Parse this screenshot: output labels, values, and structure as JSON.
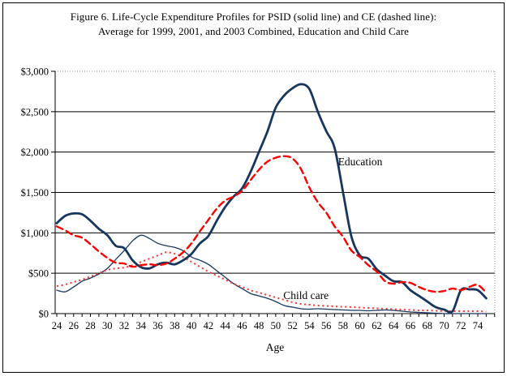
{
  "figure": {
    "title_line1": "Figure 6. Life-Cycle Expenditure Profiles for PSID (solid line) and CE (dashed line):",
    "title_line2": "Average for 1999, 2001, and 2003 Combined, Education and Child Care"
  },
  "chart_data": {
    "type": "line",
    "title": "Figure 6. Life-Cycle Expenditure Profiles for PSID (solid line) and CE (dashed line): Average for 1999, 2001, and 2003 Combined, Education and Child Care",
    "xlabel": "Age",
    "ylabel": "",
    "xlim": [
      24,
      76
    ],
    "ylim": [
      0,
      3000
    ],
    "grid": "horizontal-solid-black; top $3,000 line and right plot border dotted gray",
    "legend": "none (inline text annotations)",
    "colors": {
      "psid_navy": "#17365D",
      "ce_red": "#FF0000",
      "ce_red_light": "#FF3B3B",
      "grid_black": "#000000",
      "dotted_gray": "#888888"
    },
    "ages": [
      24,
      25,
      26,
      27,
      28,
      29,
      30,
      31,
      32,
      33,
      34,
      35,
      36,
      37,
      38,
      39,
      40,
      41,
      42,
      43,
      44,
      45,
      46,
      47,
      48,
      49,
      50,
      51,
      52,
      53,
      54,
      55,
      56,
      57,
      58,
      59,
      60,
      61,
      62,
      63,
      64,
      65,
      66,
      67,
      68,
      69,
      70,
      71,
      72,
      73,
      74,
      75
    ],
    "x_tick_labels": [
      "24",
      "26",
      "28",
      "30",
      "32",
      "34",
      "36",
      "38",
      "40",
      "42",
      "44",
      "46",
      "48",
      "50",
      "52",
      "54",
      "56",
      "58",
      "60",
      "62",
      "64",
      "66",
      "68",
      "70",
      "72",
      "74"
    ],
    "y_ticks": [
      {
        "value": 0,
        "label": "$0"
      },
      {
        "value": 500,
        "label": "$500"
      },
      {
        "value": 1000,
        "label": "$1,000"
      },
      {
        "value": 1500,
        "label": "$1,500"
      },
      {
        "value": 2000,
        "label": "$2,000"
      },
      {
        "value": 2500,
        "label": "$2,500"
      },
      {
        "value": 3000,
        "label": "$3,000"
      }
    ],
    "series": [
      {
        "name": "Child care - PSID (solid)",
        "style": "solid",
        "color": "#17365D",
        "width": 1.3,
        "values": [
          290,
          270,
          330,
          400,
          440,
          490,
          560,
          670,
          780,
          900,
          970,
          930,
          870,
          840,
          820,
          780,
          700,
          660,
          610,
          530,
          450,
          370,
          310,
          250,
          220,
          190,
          150,
          100,
          80,
          60,
          55,
          60,
          55,
          50,
          45,
          40,
          40,
          35,
          40,
          45,
          40,
          30,
          20,
          15,
          10,
          5,
          0,
          0,
          0,
          0,
          0,
          0
        ]
      },
      {
        "name": "Child care - CE (dotted)",
        "style": "dotted",
        "color": "#FF3B3B",
        "width": 2,
        "values": [
          340,
          360,
          390,
          420,
          460,
          500,
          540,
          560,
          570,
          600,
          640,
          680,
          720,
          760,
          740,
          700,
          640,
          580,
          520,
          470,
          420,
          370,
          330,
          290,
          260,
          230,
          200,
          170,
          140,
          120,
          110,
          100,
          95,
          90,
          85,
          80,
          75,
          70,
          65,
          60,
          55,
          50,
          45,
          40,
          40,
          35,
          30,
          30,
          30,
          30,
          30,
          25
        ]
      },
      {
        "name": "Education - PSID (solid)",
        "style": "solid",
        "color": "#17365D",
        "width": 2.8,
        "values": [
          1120,
          1210,
          1240,
          1230,
          1150,
          1050,
          970,
          840,
          810,
          660,
          575,
          560,
          610,
          630,
          610,
          660,
          740,
          870,
          960,
          1150,
          1320,
          1450,
          1550,
          1750,
          2000,
          2250,
          2550,
          2700,
          2790,
          2840,
          2780,
          2500,
          2260,
          2050,
          1500,
          950,
          720,
          680,
          550,
          470,
          400,
          390,
          290,
          220,
          150,
          80,
          50,
          30,
          290,
          300,
          290,
          190
        ]
      },
      {
        "name": "Education - CE (dashed)",
        "style": "dashed",
        "color": "#FF0000",
        "width": 2.4,
        "values": [
          1080,
          1030,
          970,
          940,
          860,
          770,
          690,
          630,
          620,
          580,
          600,
          610,
          600,
          620,
          680,
          760,
          870,
          1020,
          1160,
          1300,
          1400,
          1450,
          1520,
          1650,
          1780,
          1880,
          1930,
          1950,
          1920,
          1790,
          1560,
          1380,
          1250,
          1080,
          950,
          780,
          700,
          600,
          520,
          400,
          370,
          390,
          380,
          330,
          290,
          270,
          280,
          310,
          290,
          330,
          355,
          260
        ]
      }
    ],
    "annotations": [
      {
        "label": "Education",
        "age": 57.4,
        "value": 1880
      },
      {
        "label": "Child care",
        "age": 50.9,
        "value": 225
      }
    ]
  }
}
